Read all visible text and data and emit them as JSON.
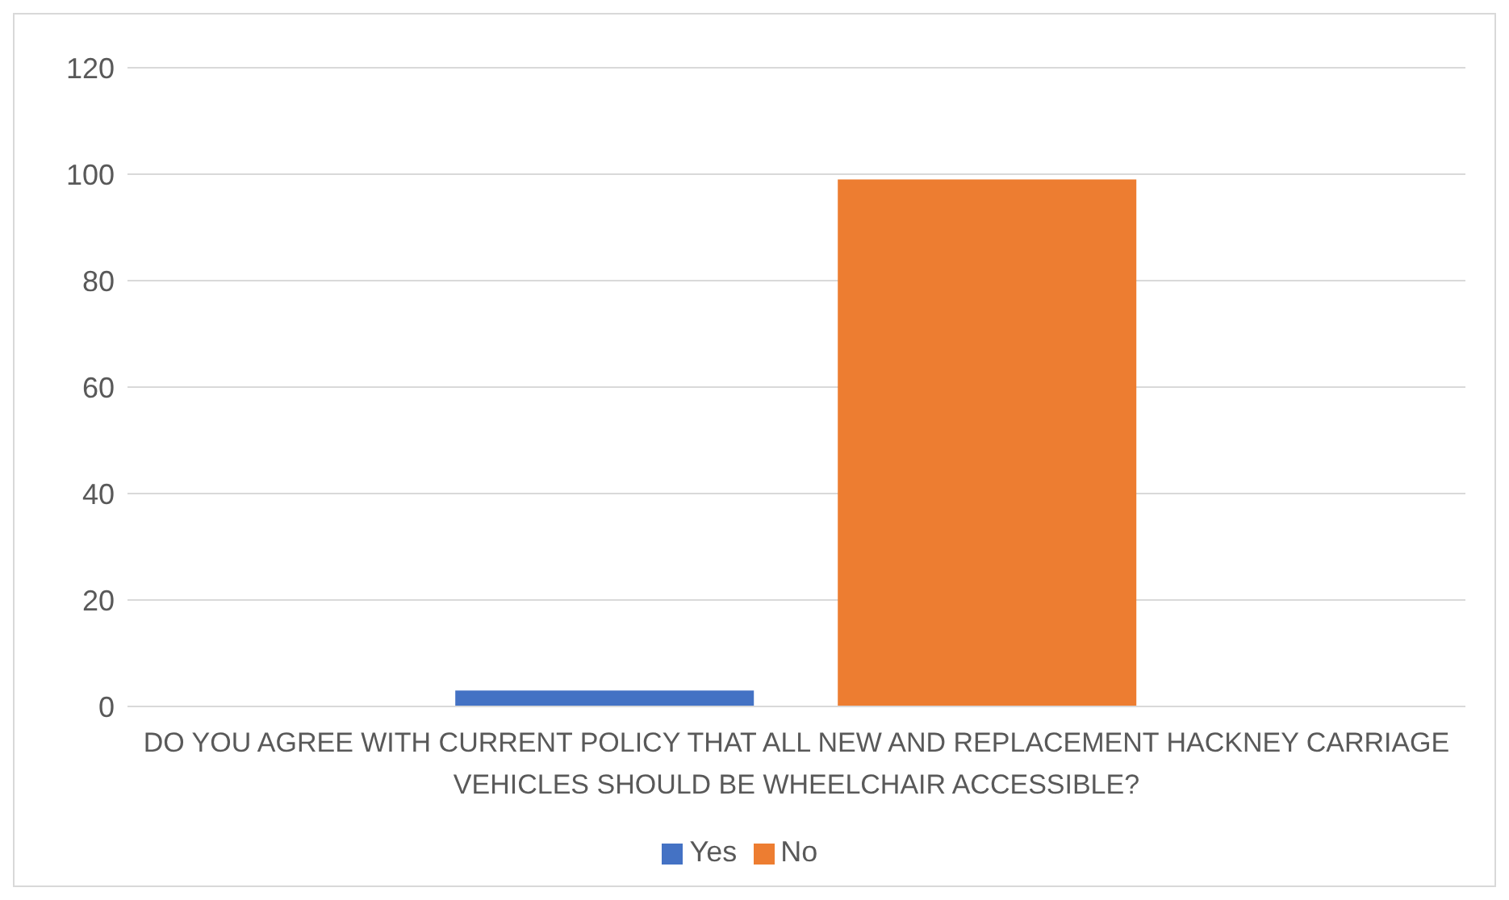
{
  "chart_data": {
    "type": "bar",
    "categories": [
      "DO YOU AGREE WITH CURRENT POLICY THAT ALL NEW AND REPLACEMENT HACKNEY CARRIAGE VEHICLES SHOULD BE WHEELCHAIR ACCESSIBLE?"
    ],
    "series": [
      {
        "name": "Yes",
        "color": "#4472c4",
        "values": [
          3
        ]
      },
      {
        "name": "No",
        "color": "#ed7d31",
        "values": [
          99
        ]
      }
    ],
    "ylim": [
      0,
      120
    ],
    "yticks": [
      0,
      20,
      40,
      60,
      80,
      100,
      120
    ],
    "grid": "y",
    "legend": "bottom"
  }
}
